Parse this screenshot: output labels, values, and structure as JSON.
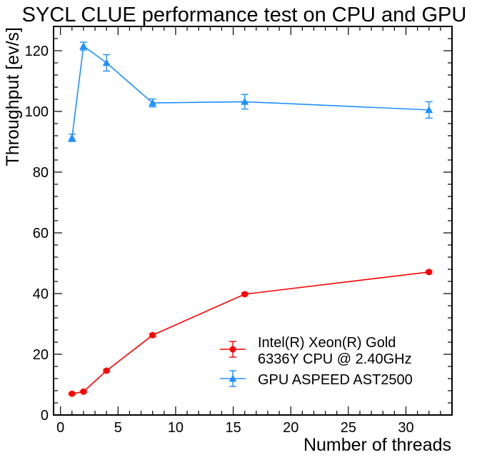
{
  "chart_data": {
    "type": "line",
    "title": "SYCL CLUE performance test on CPU and GPU",
    "xlabel": "Number of threads",
    "ylabel": "Throughput [ev/s]",
    "xlim": [
      -0.6,
      34
    ],
    "ylim": [
      0,
      128
    ],
    "xticks": [
      0,
      5,
      10,
      15,
      20,
      25,
      30
    ],
    "yticks": [
      0,
      20,
      40,
      60,
      80,
      100,
      120
    ],
    "x": [
      1,
      2,
      4,
      8,
      16,
      32
    ],
    "legend_position": "lower-right",
    "grid": false,
    "series": [
      {
        "name": "Intel(R) Xeon(R) Gold\n6336Y CPU @ 2.40GHz",
        "name_lines": [
          "Intel(R) Xeon(R) Gold",
          "6336Y CPU @ 2.40GHz"
        ],
        "color": "#ff0000",
        "marker": "circle",
        "values": [
          7.0,
          7.7,
          14.6,
          26.3,
          39.8,
          47.1
        ],
        "errors": [
          0.3,
          0.3,
          0.4,
          0.5,
          0.4,
          0.4
        ]
      },
      {
        "name": "GPU ASPEED AST2500",
        "name_lines": [
          "GPU ASPEED AST2500"
        ],
        "color": "#1e90ff",
        "marker": "triangle",
        "values": [
          91.3,
          121.5,
          116.0,
          102.8,
          103.2,
          100.5
        ],
        "errors": [
          1.2,
          1.3,
          2.7,
          1.3,
          2.4,
          2.7
        ]
      }
    ]
  }
}
